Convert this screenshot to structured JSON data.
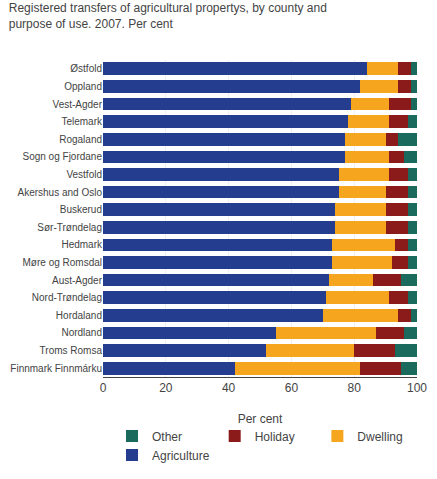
{
  "chart_data": {
    "type": "bar",
    "orientation": "horizontal",
    "stacked": true,
    "title": "Registered transfers of agricultural propertys, by county and\npurpose of use. 2007. Per cent",
    "categories": [
      "Østfold",
      "Oppland",
      "Vest-Agder",
      "Telemark",
      "Rogaland",
      "Sogn og Fjordane",
      "Vestfold",
      "Akershus and Oslo",
      "Buskerud",
      "Sør-Trøndelag",
      "Hedmark",
      "Møre og Romsdal",
      "Aust-Agder",
      "Nord-Trøndelag",
      "Hordaland",
      "Nordland",
      "Troms Romsa",
      "Finnmark Finnmárku"
    ],
    "series": [
      {
        "name": "Agriculture",
        "color": "#253d8f",
        "values": [
          84,
          82,
          79,
          78,
          77,
          77,
          75,
          75,
          74,
          74,
          73,
          73,
          72,
          71,
          70,
          55,
          52,
          42
        ]
      },
      {
        "name": "Dwelling",
        "color": "#f5a51e",
        "values": [
          10,
          12,
          12,
          13,
          13,
          14,
          16,
          15,
          16,
          16,
          20,
          19,
          14,
          20,
          24,
          32,
          28,
          40
        ]
      },
      {
        "name": "Holiday",
        "color": "#8b1a1a",
        "values": [
          4,
          4,
          7,
          6,
          4,
          5,
          6,
          7,
          7,
          7,
          4,
          5,
          9,
          6,
          4,
          9,
          13,
          13
        ]
      },
      {
        "name": "Other",
        "color": "#1a6b5e",
        "values": [
          2,
          2,
          2,
          3,
          6,
          4,
          3,
          3,
          3,
          3,
          3,
          3,
          5,
          3,
          2,
          4,
          7,
          5
        ]
      }
    ],
    "xlabel": "Per cent",
    "xlim": [
      0,
      100
    ],
    "xticks": [
      0,
      20,
      40,
      60,
      80,
      100
    ],
    "grid": true,
    "legend": "bottom"
  }
}
